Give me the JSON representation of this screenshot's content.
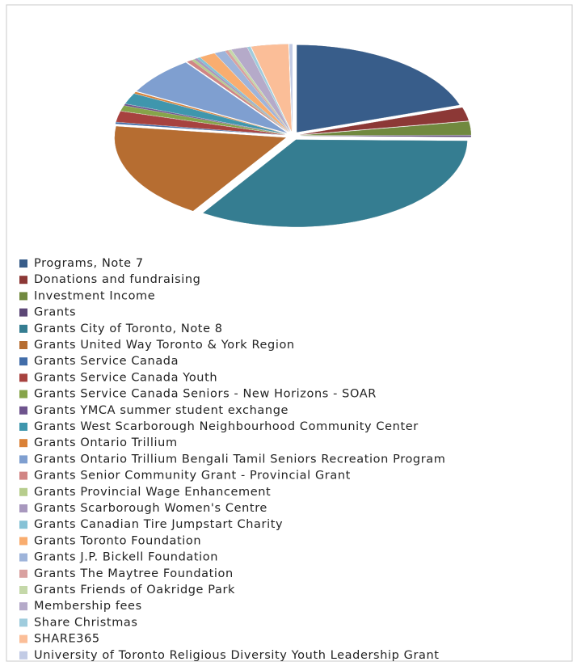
{
  "chart_data": {
    "type": "pie",
    "labels": [
      "Programs, Note 7",
      "Donations and fundraising",
      "Investment Income",
      "Grants",
      "Grants City of Toronto, Note 8",
      "Grants United Way Toronto & York Region",
      "Grants Service Canada",
      "Grants Service Canada Youth",
      "Grants Service Canada Seniors - New Horizons - SOAR",
      "Grants YMCA summer student exchange",
      "Grants West Scarborough Neighbourhood Community Center",
      "Grants Ontario Trillium",
      "Grants Ontario Trillium Bengali Tamil Seniors Recreation Program",
      "Grants Senior Community Grant - Provincial Grant",
      "Grants Provincial  Wage Enhancement",
      "Grants Scarborough Women's Centre",
      "Grants Canadian Tire Jumpstart Charity",
      "Grants Toronto Foundation",
      "Grants J.P. Bickell Foundation",
      "Grants The Maytree Foundation",
      "Grants Friends of Oakridge Park",
      "Membership fees",
      "Share Christmas",
      "SHARE365",
      "University of Toronto Religious Diversity Youth Leadership Grant"
    ],
    "values": [
      20,
      2.5,
      2.5,
      0.3,
      34,
      18,
      0.3,
      2,
      1,
      0.3,
      2,
      0.3,
      7,
      0.5,
      0.3,
      0.3,
      0.3,
      1.5,
      1,
      0.3,
      0.3,
      1.5,
      0.3,
      3.5,
      0.3
    ],
    "colors": [
      "#385d8a",
      "#8c3836",
      "#71893f",
      "#5c4776",
      "#357d91",
      "#b66d31",
      "#426da9",
      "#a7423f",
      "#86a44a",
      "#6e548d",
      "#3f96ad",
      "#da8137",
      "#7f9fd0",
      "#d18584",
      "#b7cd8d",
      "#a898be",
      "#86c2d6",
      "#f9ad6f",
      "#9eb4da",
      "#d9a1a0",
      "#c5d8a9",
      "#b5aac9",
      "#9fccdd",
      "#fbbe98",
      "#c2cbe5"
    ]
  }
}
